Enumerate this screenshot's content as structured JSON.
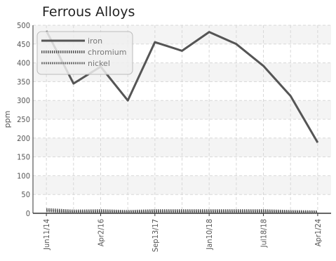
{
  "chart_data": {
    "type": "line",
    "title": "Ferrous Alloys",
    "xlabel": "",
    "ylabel": "ppm",
    "ylim": [
      0,
      500
    ],
    "y_ticks": [
      0,
      50,
      100,
      150,
      200,
      250,
      300,
      350,
      400,
      450,
      500
    ],
    "x_tick_labels": [
      "Jun11/14",
      "Apr2/16",
      "Sep13/17",
      "Jan10/18",
      "Jul18/18",
      "Apr1/24"
    ],
    "x_tick_positions": [
      0,
      2,
      4,
      6,
      8,
      10
    ],
    "x_count": 11,
    "grid": true,
    "legend": "top-left",
    "series": [
      {
        "name": "iron",
        "color": "#555555",
        "style": "solid",
        "values": [
          485,
          345,
          390,
          300,
          455,
          432,
          482,
          450,
          392,
          312,
          188
        ]
      },
      {
        "name": "chromium",
        "color": "#555555",
        "style": "dotted",
        "values": [
          10,
          6,
          7,
          5,
          7,
          7,
          7,
          7,
          7,
          5,
          4
        ]
      },
      {
        "name": "nickel",
        "color": "#777777",
        "style": "dashed",
        "values": [
          6,
          3,
          4,
          3,
          4,
          4,
          4,
          4,
          4,
          3,
          2
        ]
      }
    ]
  }
}
